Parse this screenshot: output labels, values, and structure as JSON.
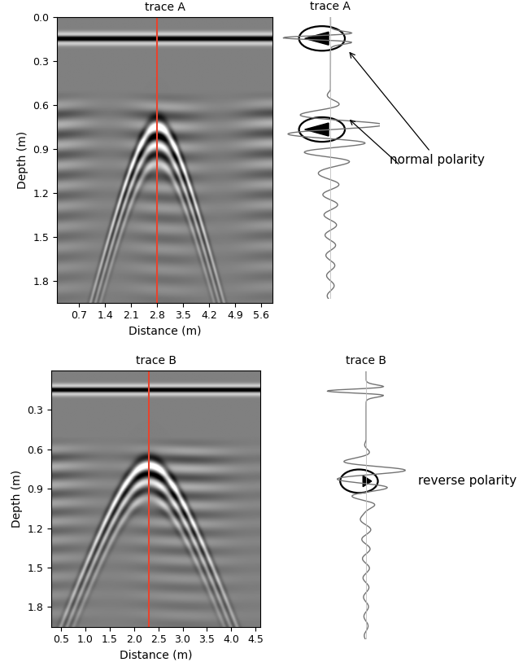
{
  "chart_data": [
    {
      "type": "radargram",
      "title": "trace A",
      "xlabel": "Distance (m)",
      "ylabel": "Depth (m)",
      "xlim": [
        0.1,
        5.9
      ],
      "ylim": [
        1.95,
        0.0
      ],
      "xticks": [
        0.7,
        1.4,
        2.1,
        2.8,
        3.5,
        4.2,
        4.9,
        5.6
      ],
      "yticks": [
        {
          "value": 0,
          "label": "0.0"
        },
        0.3,
        0.6,
        0.9,
        1.2,
        1.5,
        1.8
      ],
      "color": "#e8432d",
      "trace_x": 2.8,
      "apex_depth": 0.75,
      "trace": {
        "title": "trace A",
        "polarity_label": "normal polarity",
        "marker": "triangle-left",
        "polarity_depths": [
          0.15,
          0.78
        ]
      }
    },
    {
      "type": "radargram",
      "title": "trace B",
      "xlabel": "Distance (m)",
      "ylabel": "Depth (m)",
      "xlim": [
        0.3,
        4.6
      ],
      "ylim": [
        1.95,
        0.0
      ],
      "xticks": [
        0.5,
        1.0,
        1.5,
        2.0,
        2.5,
        3.0,
        3.5,
        4.0,
        4.5
      ],
      "yticks": [
        0.3,
        0.6,
        0.9,
        1.2,
        1.5,
        1.8
      ],
      "color": "#e8432d",
      "trace_x": 2.3,
      "apex_depth": 0.72,
      "trace": {
        "title": "trace B",
        "polarity_label": "reverse polarity",
        "marker": "triangle-right",
        "polarity_depths": [
          0.8
        ]
      }
    }
  ]
}
